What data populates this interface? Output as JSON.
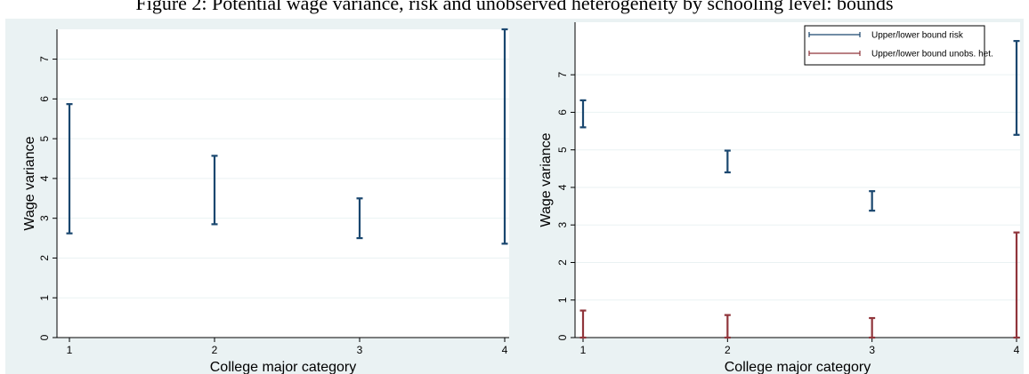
{
  "figure": {
    "caption": "Figure 2: Potential wage variance, risk and unobserved heterogeneity by schooling level: bounds"
  },
  "colors": {
    "outer_bg": "#eaf2f3",
    "plot_bg": "#ffffff",
    "risk": "#1a476f",
    "unobs": "#90353b",
    "grid": "#eaf2f3",
    "axis": "#000000"
  },
  "chart_data": [
    {
      "type": "range",
      "title": "",
      "xlabel": "College major category",
      "ylabel": "Wage variance",
      "xlim": [
        1,
        4
      ],
      "ylim": [
        0,
        7.75
      ],
      "xticks": [
        1,
        2,
        3,
        4
      ],
      "yticks": [
        0,
        1,
        2,
        3,
        4,
        5,
        6,
        7
      ],
      "grid": true,
      "legend": null,
      "series": [
        {
          "color": "#1a476f",
          "points": [
            {
              "x": 1,
              "low": 2.62,
              "high": 5.87
            },
            {
              "x": 2,
              "low": 2.85,
              "high": 4.57
            },
            {
              "x": 3,
              "low": 2.5,
              "high": 3.5
            },
            {
              "x": 4,
              "low": 2.36,
              "high": 7.75
            }
          ]
        }
      ]
    },
    {
      "type": "range",
      "title": "",
      "xlabel": "College major category",
      "ylabel": "Wage variance",
      "xlim": [
        1,
        4
      ],
      "ylim": [
        0,
        8.4
      ],
      "xticks": [
        1,
        2,
        3,
        4
      ],
      "yticks": [
        0,
        1,
        2,
        3,
        4,
        5,
        6,
        7
      ],
      "grid": true,
      "legend": "top-right",
      "series": [
        {
          "name": "Upper/lower bound risk",
          "color": "#1a476f",
          "points": [
            {
              "x": 1,
              "low": 5.6,
              "high": 6.32
            },
            {
              "x": 2,
              "low": 4.4,
              "high": 4.98
            },
            {
              "x": 3,
              "low": 3.38,
              "high": 3.9
            },
            {
              "x": 4,
              "low": 5.4,
              "high": 7.9
            }
          ]
        },
        {
          "name": "Upper/lower bound unobs. het.",
          "color": "#90353b",
          "points": [
            {
              "x": 1,
              "low": 0.0,
              "high": 0.72
            },
            {
              "x": 2,
              "low": 0.0,
              "high": 0.6
            },
            {
              "x": 3,
              "low": 0.0,
              "high": 0.52
            },
            {
              "x": 4,
              "low": 0.0,
              "high": 2.8
            }
          ]
        }
      ]
    }
  ]
}
